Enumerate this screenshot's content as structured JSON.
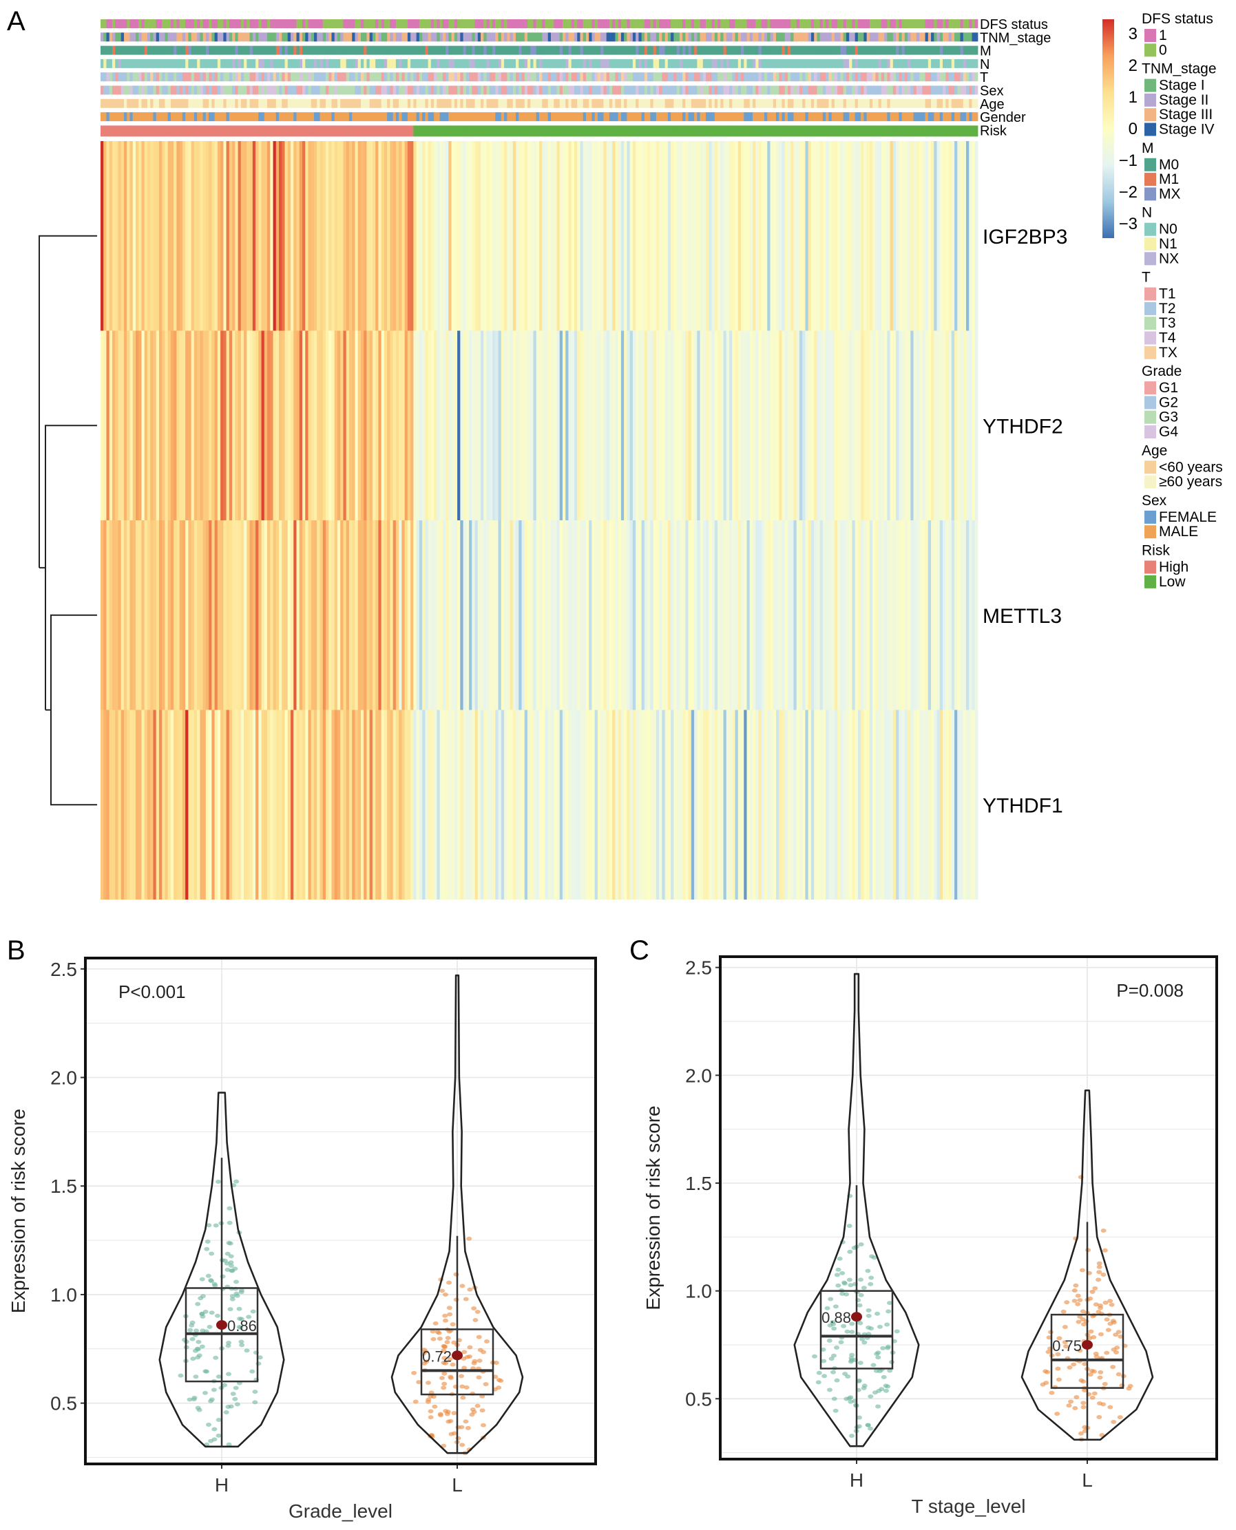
{
  "panel_labels": [
    "A",
    "B",
    "C"
  ],
  "chart_data": [
    {
      "type": "heatmap",
      "rows": [
        "IGF2BP3",
        "YTHDF2",
        "METTL3",
        "YTHDF1"
      ],
      "column_groups": [
        {
          "name": "High",
          "fraction": 0.355
        },
        {
          "name": "Low",
          "fraction": 0.645
        }
      ],
      "group_mean_z": {
        "High": [
          1.3,
          1.1,
          1.2,
          1.1
        ],
        "Low": [
          -0.1,
          -0.4,
          -0.5,
          -0.4
        ]
      },
      "color_scale": {
        "min": -3,
        "max": 3,
        "ticks": [
          "3",
          "2",
          "1",
          "0",
          "−1",
          "−2",
          "−3"
        ],
        "colors": [
          "#3c6fb0",
          "#9ec9e2",
          "#e6f4f1",
          "#fdfdc4",
          "#fde08f",
          "#f8a05d",
          "#d42d26"
        ]
      },
      "annotation_rows": [
        "DFS status",
        "TNM_stage",
        "M",
        "N",
        "T",
        "Sex",
        "Age",
        "Gender",
        "Risk"
      ],
      "legend": [
        {
          "title": "DFS status",
          "items": [
            {
              "label": "1",
              "color": "#d877b4"
            },
            {
              "label": "0",
              "color": "#93c35a"
            }
          ]
        },
        {
          "title": "TNM_stage",
          "items": [
            {
              "label": "Stage I",
              "color": "#6fb77a"
            },
            {
              "label": "Stage II",
              "color": "#b6a6d2"
            },
            {
              "label": "Stage III",
              "color": "#f2b482"
            },
            {
              "label": "Stage IV",
              "color": "#2b63a6"
            }
          ]
        },
        {
          "title": "M",
          "items": [
            {
              "label": "M0",
              "color": "#4fa48b"
            },
            {
              "label": "M1",
              "color": "#e77a56"
            },
            {
              "label": "MX",
              "color": "#8496c7"
            }
          ]
        },
        {
          "title": "N",
          "items": [
            {
              "label": "N0",
              "color": "#86cbc0"
            },
            {
              "label": "N1",
              "color": "#f6f1a8"
            },
            {
              "label": "NX",
              "color": "#b9b4d8"
            }
          ]
        },
        {
          "title": "T",
          "items": [
            {
              "label": "T1",
              "color": "#f0a3a3"
            },
            {
              "label": "T2",
              "color": "#a9c6e2"
            },
            {
              "label": "T3",
              "color": "#b8dcb3"
            },
            {
              "label": "T4",
              "color": "#d8c4e0"
            },
            {
              "label": "TX",
              "color": "#f8cf9f"
            }
          ]
        },
        {
          "title": "Grade",
          "items": [
            {
              "label": "G1",
              "color": "#f0a3a3"
            },
            {
              "label": "G2",
              "color": "#a9c6e2"
            },
            {
              "label": "G3",
              "color": "#b8dcb3"
            },
            {
              "label": "G4",
              "color": "#d8c4e0"
            }
          ]
        },
        {
          "title": "Age",
          "items": [
            {
              "label": "<60 years",
              "color": "#f6cf9b"
            },
            {
              "label": "≥60 years",
              "color": "#f6f3c6"
            }
          ]
        },
        {
          "title": "Sex",
          "items": [
            {
              "label": "FEMALE",
              "color": "#6a9fcf"
            },
            {
              "label": "MALE",
              "color": "#f0a255"
            }
          ]
        },
        {
          "title": "Risk",
          "items": [
            {
              "label": "High",
              "color": "#e98078"
            },
            {
              "label": "Low",
              "color": "#5fb143"
            }
          ]
        }
      ]
    },
    {
      "type": "violin-box",
      "xlabel": "Grade_level",
      "ylabel": "Expression of risk score",
      "ylim": [
        0.22,
        2.55
      ],
      "yticks": [
        "0.5",
        "1.0",
        "1.5",
        "2.0",
        "2.5"
      ],
      "grid": true,
      "annotation": "P<0.001",
      "groups": [
        {
          "label": "H",
          "color": "#6fb5a0",
          "mean": 0.86,
          "mean_label": "0.86",
          "median": 0.82,
          "q1": 0.6,
          "q3": 1.03,
          "whisker_low": 0.3,
          "whisker_high": 1.63,
          "min": 0.3,
          "max": 1.93,
          "density": [
            [
              0.3,
              0.25
            ],
            [
              0.4,
              0.6
            ],
            [
              0.55,
              0.85
            ],
            [
              0.7,
              0.95
            ],
            [
              0.85,
              0.85
            ],
            [
              1.0,
              0.6
            ],
            [
              1.15,
              0.4
            ],
            [
              1.3,
              0.25
            ],
            [
              1.5,
              0.15
            ],
            [
              1.7,
              0.08
            ],
            [
              1.85,
              0.06
            ],
            [
              1.93,
              0.05
            ]
          ]
        },
        {
          "label": "L",
          "color": "#e98b3f",
          "mean": 0.72,
          "mean_label": "0.72",
          "median": 0.65,
          "q1": 0.54,
          "q3": 0.84,
          "whisker_low": 0.27,
          "whisker_high": 1.27,
          "min": 0.27,
          "max": 2.47,
          "density": [
            [
              0.27,
              0.15
            ],
            [
              0.4,
              0.6
            ],
            [
              0.55,
              0.95
            ],
            [
              0.62,
              1.0
            ],
            [
              0.72,
              0.9
            ],
            [
              0.85,
              0.55
            ],
            [
              1.0,
              0.3
            ],
            [
              1.2,
              0.12
            ],
            [
              1.5,
              0.06
            ],
            [
              1.75,
              0.07
            ],
            [
              2.0,
              0.03
            ],
            [
              2.47,
              0.02
            ]
          ]
        }
      ]
    },
    {
      "type": "violin-box",
      "xlabel": "T stage_level",
      "ylabel": "Expression of risk score",
      "ylim": [
        0.22,
        2.55
      ],
      "yticks": [
        "0.5",
        "1.0",
        "1.5",
        "2.0",
        "2.5"
      ],
      "grid": true,
      "annotation": "P=0.008",
      "groups": [
        {
          "label": "H",
          "color": "#6fb5a0",
          "mean": 0.88,
          "mean_label": "0.88",
          "median": 0.79,
          "q1": 0.64,
          "q3": 1.0,
          "whisker_low": 0.28,
          "whisker_high": 1.49,
          "min": 0.28,
          "max": 2.47,
          "density": [
            [
              0.28,
              0.1
            ],
            [
              0.45,
              0.5
            ],
            [
              0.6,
              0.85
            ],
            [
              0.75,
              0.95
            ],
            [
              0.9,
              0.75
            ],
            [
              1.05,
              0.45
            ],
            [
              1.25,
              0.2
            ],
            [
              1.5,
              0.1
            ],
            [
              1.75,
              0.12
            ],
            [
              2.0,
              0.06
            ],
            [
              2.3,
              0.03
            ],
            [
              2.47,
              0.03
            ]
          ]
        },
        {
          "label": "L",
          "color": "#e98b3f",
          "mean": 0.75,
          "mean_label": "0.75",
          "median": 0.68,
          "q1": 0.55,
          "q3": 0.89,
          "whisker_low": 0.31,
          "whisker_high": 1.32,
          "min": 0.31,
          "max": 1.93,
          "density": [
            [
              0.31,
              0.2
            ],
            [
              0.45,
              0.75
            ],
            [
              0.6,
              1.0
            ],
            [
              0.72,
              0.9
            ],
            [
              0.9,
              0.6
            ],
            [
              1.05,
              0.35
            ],
            [
              1.25,
              0.15
            ],
            [
              1.5,
              0.08
            ],
            [
              1.7,
              0.06
            ],
            [
              1.93,
              0.03
            ]
          ]
        }
      ]
    }
  ]
}
